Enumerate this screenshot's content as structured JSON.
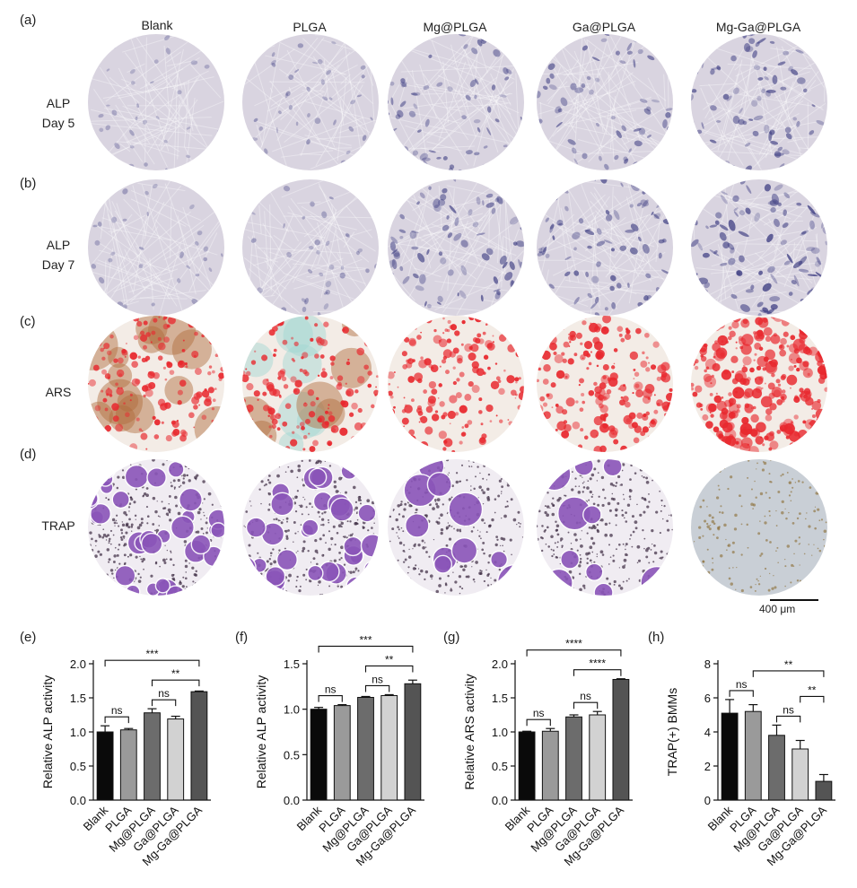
{
  "panel_labels": [
    "(a)",
    "(b)",
    "(c)",
    "(d)",
    "(e)",
    "(f)",
    "(g)",
    "(h)"
  ],
  "columns": [
    "Blank",
    "PLGA",
    "Mg@PLGA",
    "Ga@PLGA",
    "Mg-Ga@PLGA"
  ],
  "rows": [
    {
      "label_line1": "ALP",
      "label_line2": "Day 5",
      "stain": "alp5"
    },
    {
      "label_line1": "ALP",
      "label_line2": "Day 7",
      "stain": "alp7"
    },
    {
      "label_line1": "ARS",
      "label_line2": "",
      "stain": "ars"
    },
    {
      "label_line1": "TRAP",
      "label_line2": "",
      "stain": "trap"
    }
  ],
  "stain_colors": {
    "alp_background": "#d9d4e0",
    "alp_stain": "#3a3a80",
    "ars_background": "#f3ece6",
    "ars_stain": "#e8282e",
    "ars_brown": "#b06a3a",
    "ars_cyan": "#9fd8d2",
    "trap_background": "#f0ecf2",
    "trap_cell": "#8a55b8",
    "trap_dark": "#3a2a40",
    "trap_brown_bg": "#c9cfd6"
  },
  "scale_bar": "400 μm",
  "bar_colors": [
    "#0a0a0a",
    "#9a9a9a",
    "#6c6c6c",
    "#d2d2d2",
    "#545454"
  ],
  "chart_data": [
    {
      "type": "bar",
      "panel": "(e)",
      "categories": [
        "Blank",
        "PLGA",
        "Mg@PLGA",
        "Ga@PLGA",
        "Mg-Ga@PLGA"
      ],
      "values": [
        1.0,
        1.03,
        1.28,
        1.19,
        1.59
      ],
      "errors": [
        0.09,
        0.02,
        0.06,
        0.04,
        0.01
      ],
      "ylabel": "Relative ALP activity",
      "ylim": [
        0,
        2.0
      ],
      "yticks": [
        "0.0",
        "0.5",
        "1.0",
        "1.5",
        "2.0"
      ],
      "annotations": [
        {
          "from": 0,
          "to": 1,
          "text": "ns"
        },
        {
          "from": 2,
          "to": 3,
          "text": "ns"
        },
        {
          "from": 2,
          "to": 4,
          "text": "**"
        },
        {
          "from": 0,
          "to": 4,
          "text": "***"
        }
      ]
    },
    {
      "type": "bar",
      "panel": "(f)",
      "categories": [
        "Blank",
        "PLGA",
        "Mg@PLGA",
        "Ga@PLGA",
        "Mg-Ga@PLGA"
      ],
      "values": [
        1.0,
        1.04,
        1.13,
        1.15,
        1.28
      ],
      "errors": [
        0.02,
        0.01,
        0.01,
        0.01,
        0.04
      ],
      "ylabel": "Relative ALP activity",
      "ylim": [
        0,
        1.5
      ],
      "yticks": [
        "0.0",
        "0.5",
        "1.0",
        "1.5"
      ],
      "annotations": [
        {
          "from": 0,
          "to": 1,
          "text": "ns"
        },
        {
          "from": 2,
          "to": 3,
          "text": "ns"
        },
        {
          "from": 2,
          "to": 4,
          "text": "**"
        },
        {
          "from": 0,
          "to": 4,
          "text": "***"
        }
      ]
    },
    {
      "type": "bar",
      "panel": "(g)",
      "categories": [
        "Blank",
        "PLGA",
        "Mg@PLGA",
        "Ga@PLGA",
        "Mg-Ga@PLGA"
      ],
      "values": [
        1.0,
        1.01,
        1.22,
        1.25,
        1.77
      ],
      "errors": [
        0.01,
        0.04,
        0.03,
        0.05,
        0.01
      ],
      "ylabel": "Relative ARS activity",
      "ylim": [
        0,
        2.0
      ],
      "yticks": [
        "0.0",
        "0.5",
        "1.0",
        "1.5",
        "2.0"
      ],
      "annotations": [
        {
          "from": 0,
          "to": 1,
          "text": "ns"
        },
        {
          "from": 2,
          "to": 3,
          "text": "ns"
        },
        {
          "from": 2,
          "to": 4,
          "text": "****"
        },
        {
          "from": 0,
          "to": 4,
          "text": "****"
        }
      ]
    },
    {
      "type": "bar",
      "panel": "(h)",
      "categories": [
        "Blank",
        "PLGA",
        "Mg@PLGA",
        "Ga@PLGA",
        "Mg-Ga@PLGA"
      ],
      "values": [
        5.1,
        5.2,
        3.8,
        3.0,
        1.1
      ],
      "errors": [
        0.8,
        0.4,
        0.6,
        0.5,
        0.4
      ],
      "ylabel": "TRAP(+) BMMs",
      "ylim": [
        0,
        8
      ],
      "yticks": [
        "0",
        "2",
        "4",
        "6",
        "8"
      ],
      "annotations": [
        {
          "from": 0,
          "to": 1,
          "text": "ns"
        },
        {
          "from": 2,
          "to": 3,
          "text": "ns"
        },
        {
          "from": 3,
          "to": 4,
          "text": "**"
        },
        {
          "from": 1,
          "to": 4,
          "text": "**"
        }
      ]
    }
  ]
}
